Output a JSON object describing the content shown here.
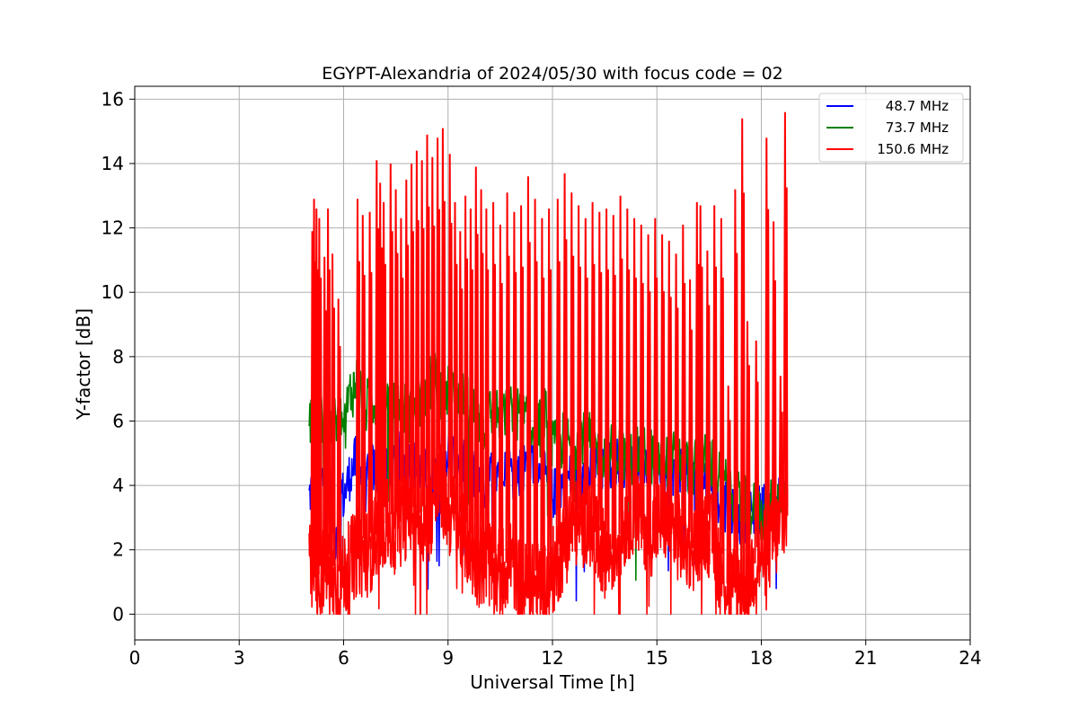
{
  "chart_data": {
    "type": "line",
    "title": "EGYPT-Alexandria of 2024/05/30 with focus code = 02",
    "xlabel": "Universal Time [h]",
    "ylabel": "Y-factor [dB]",
    "xlim": [
      0,
      24
    ],
    "ylim": [
      -0.8,
      16.4
    ],
    "xticks": [
      0,
      3,
      6,
      9,
      12,
      15,
      18,
      21,
      24
    ],
    "yticks": [
      0,
      2,
      4,
      6,
      8,
      10,
      12,
      14,
      16
    ],
    "grid": true,
    "legend_position": "top-right",
    "series": [
      {
        "name": "48.7 MHz",
        "color": "#0000ff",
        "x": [
          5.0,
          5.1,
          5.2,
          5.4,
          5.6,
          5.75,
          5.9,
          6.0,
          6.2,
          6.4,
          6.6,
          6.8,
          7.0,
          7.3,
          7.6,
          8.0,
          8.3,
          8.6,
          8.9,
          9.2,
          9.5,
          9.8,
          10.0,
          10.3,
          10.6,
          10.9,
          11.2,
          11.5,
          11.8,
          12.0,
          12.3,
          12.6,
          12.9,
          13.2,
          13.5,
          13.8,
          14.1,
          14.4,
          14.7,
          15.0,
          15.3,
          15.6,
          15.9,
          16.2,
          16.5,
          16.8,
          17.1,
          17.4,
          17.7,
          18.0,
          18.3,
          18.6,
          18.75
        ],
        "y": [
          3.6,
          4.0,
          3.7,
          4.2,
          3.9,
          2.2,
          4.1,
          3.6,
          4.4,
          4.9,
          3.8,
          4.6,
          4.2,
          4.5,
          4.9,
          4.7,
          4.4,
          4.2,
          5.1,
          4.8,
          4.6,
          4.3,
          3.9,
          4.5,
          4.8,
          4.3,
          4.6,
          4.9,
          4.2,
          3.7,
          4.1,
          4.3,
          4.0,
          4.6,
          4.4,
          4.8,
          4.6,
          4.9,
          4.5,
          4.7,
          4.3,
          4.6,
          4.4,
          4.1,
          4.2,
          3.5,
          3.2,
          2.9,
          3.1,
          3.3,
          3.4,
          3.6,
          3.7
        ]
      },
      {
        "name": "73.7 MHz",
        "color": "#008000",
        "x": [
          5.0,
          5.1,
          5.2,
          5.4,
          5.6,
          5.75,
          5.9,
          6.0,
          6.2,
          6.4,
          6.6,
          6.8,
          7.0,
          7.3,
          7.6,
          8.0,
          8.3,
          8.6,
          8.9,
          9.2,
          9.5,
          9.8,
          10.0,
          10.3,
          10.6,
          10.9,
          11.2,
          11.5,
          11.8,
          12.0,
          12.3,
          12.6,
          12.9,
          13.2,
          13.5,
          13.8,
          14.1,
          14.4,
          14.7,
          15.0,
          15.3,
          15.6,
          15.9,
          16.2,
          16.5,
          16.8,
          17.1,
          17.4,
          17.7,
          18.0,
          18.3,
          18.6,
          18.75
        ],
        "y": [
          5.8,
          6.3,
          5.9,
          6.2,
          5.7,
          5.9,
          6.1,
          5.8,
          6.9,
          7.2,
          6.4,
          6.6,
          6.8,
          6.2,
          6.5,
          6.1,
          6.9,
          7.3,
          6.8,
          7.1,
          6.6,
          6.2,
          5.9,
          6.3,
          6.1,
          6.4,
          6.0,
          5.8,
          6.2,
          5.1,
          5.4,
          5.3,
          5.6,
          5.2,
          4.9,
          5.1,
          4.8,
          4.9,
          5.0,
          4.8,
          4.7,
          4.9,
          4.6,
          4.5,
          4.9,
          4.2,
          3.9,
          3.5,
          3.3,
          3.1,
          3.4,
          3.6,
          3.8
        ]
      },
      {
        "name": "150.6 MHz",
        "color": "#ff0000",
        "x": [
          5.0,
          5.1,
          5.2,
          5.3,
          5.4,
          5.5,
          5.6,
          5.75,
          5.9,
          6.0,
          6.2,
          6.4,
          6.6,
          6.8,
          7.0,
          7.2,
          7.4,
          7.6,
          7.8,
          8.0,
          8.2,
          8.4,
          8.6,
          8.8,
          9.0,
          9.2,
          9.4,
          9.6,
          9.8,
          10.0,
          10.2,
          10.4,
          10.6,
          10.8,
          11.0,
          11.2,
          11.4,
          11.6,
          11.8,
          12.0,
          12.2,
          12.4,
          12.6,
          12.8,
          13.0,
          13.2,
          13.4,
          13.6,
          13.8,
          14.0,
          14.2,
          14.4,
          14.6,
          14.8,
          15.0,
          15.2,
          15.4,
          15.6,
          15.8,
          16.0,
          16.2,
          16.4,
          16.6,
          16.8,
          17.0,
          17.2,
          17.4,
          17.6,
          17.8,
          18.0,
          18.2,
          18.4,
          18.6,
          18.75
        ],
        "y": [
          1.5,
          1.2,
          1.3,
          1.0,
          1.4,
          1.6,
          1.1,
          0.9,
          0.8,
          1.2,
          1.6,
          2.0,
          1.8,
          2.1,
          2.6,
          2.9,
          2.5,
          2.8,
          3.1,
          3.4,
          2.9,
          2.7,
          3.6,
          3.9,
          3.2,
          2.9,
          2.6,
          2.1,
          1.7,
          1.5,
          1.6,
          1.2,
          1.4,
          1.8,
          1.1,
          0.9,
          0.8,
          0.9,
          1.0,
          1.3,
          1.8,
          2.3,
          2.9,
          2.7,
          3.0,
          2.4,
          2.0,
          1.8,
          2.1,
          2.6,
          3.1,
          3.3,
          2.9,
          2.5,
          2.8,
          3.0,
          2.7,
          2.4,
          2.2,
          2.0,
          2.4,
          2.7,
          2.3,
          1.5,
          1.0,
          0.8,
          0.9,
          1.1,
          1.5,
          1.8,
          2.0,
          2.4,
          2.9,
          3.2
        ],
        "peaks": {
          "x": [
            5.1,
            5.15,
            5.22,
            5.3,
            5.45,
            5.55,
            5.68,
            5.85,
            6.4,
            6.55,
            6.75,
            6.95,
            7.05,
            7.15,
            7.35,
            7.5,
            7.65,
            7.8,
            7.95,
            8.1,
            8.25,
            8.4,
            8.55,
            8.7,
            8.85,
            9.05,
            9.2,
            9.35,
            9.5,
            9.65,
            9.8,
            9.95,
            10.1,
            10.3,
            10.5,
            10.7,
            10.9,
            11.1,
            11.3,
            11.5,
            11.7,
            11.9,
            12.15,
            12.35,
            12.55,
            12.75,
            12.95,
            13.15,
            13.35,
            13.55,
            13.75,
            13.95,
            14.15,
            14.35,
            14.55,
            14.75,
            14.95,
            15.15,
            15.35,
            15.55,
            15.75,
            15.95,
            16.15,
            16.25,
            16.45,
            16.65,
            16.85,
            17.05,
            17.25,
            17.45,
            17.6,
            17.85,
            18.15,
            18.35,
            18.55,
            18.68
          ],
          "y": [
            11.9,
            12.9,
            12.6,
            12.3,
            11.1,
            12.6,
            11.2,
            9.8,
            12.9,
            12.4,
            12.5,
            14.1,
            13.4,
            12.8,
            14.0,
            13.2,
            12.3,
            13.5,
            14.0,
            14.4,
            14.1,
            14.9,
            14.2,
            14.8,
            15.1,
            14.3,
            12.8,
            11.9,
            13.0,
            12.6,
            13.9,
            13.2,
            12.6,
            12.8,
            12.1,
            13.1,
            12.5,
            12.7,
            13.6,
            12.9,
            12.3,
            12.6,
            12.9,
            13.7,
            13.1,
            12.7,
            12.3,
            12.8,
            12.5,
            12.6,
            12.4,
            13.0,
            12.6,
            12.3,
            12.1,
            11.8,
            12.3,
            11.8,
            11.6,
            11.2,
            12.1,
            10.4,
            12.8,
            12.7,
            11.3,
            12.7,
            12.3,
            7.1,
            13.2,
            15.4,
            9.1,
            8.5,
            14.8,
            12.2,
            7.4,
            15.6
          ]
        }
      }
    ]
  }
}
